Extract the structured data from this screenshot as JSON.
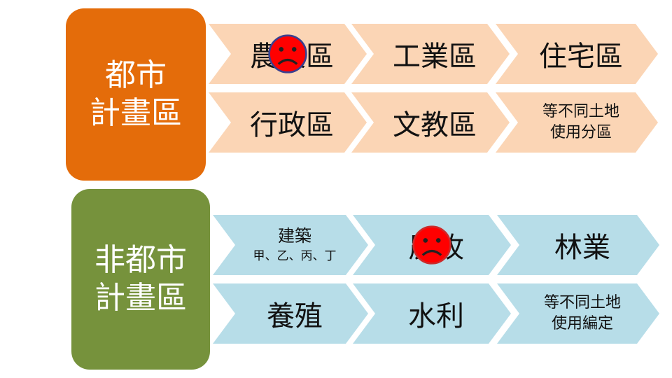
{
  "colors": {
    "urban_box": "#e46c0a",
    "nonurban_box": "#76923c",
    "urban_chevron": "#fbd5b5",
    "nonurban_chevron": "#b7dde8",
    "sad_face": "#ff0000"
  },
  "urban": {
    "title_line1": "都市",
    "title_line2": "計畫區",
    "row1": [
      {
        "label": "農業區",
        "sad_icon": true
      },
      {
        "label": "工業區"
      },
      {
        "label": "住宅區"
      }
    ],
    "row2": [
      {
        "label": "行政區"
      },
      {
        "label": "文教區"
      },
      {
        "label_line1": "等不同土地",
        "label_line2": "使用分區"
      }
    ]
  },
  "nonurban": {
    "title_line1": "非都市",
    "title_line2": "計畫區",
    "row1": [
      {
        "label_line1": "建築",
        "label_line2": "甲、乙、丙、丁"
      },
      {
        "label": "農牧",
        "sad_icon": true
      },
      {
        "label": "林業"
      }
    ],
    "row2": [
      {
        "label": "養殖"
      },
      {
        "label": "水利"
      },
      {
        "label_line1": "等不同土地",
        "label_line2": "使用編定"
      }
    ]
  }
}
